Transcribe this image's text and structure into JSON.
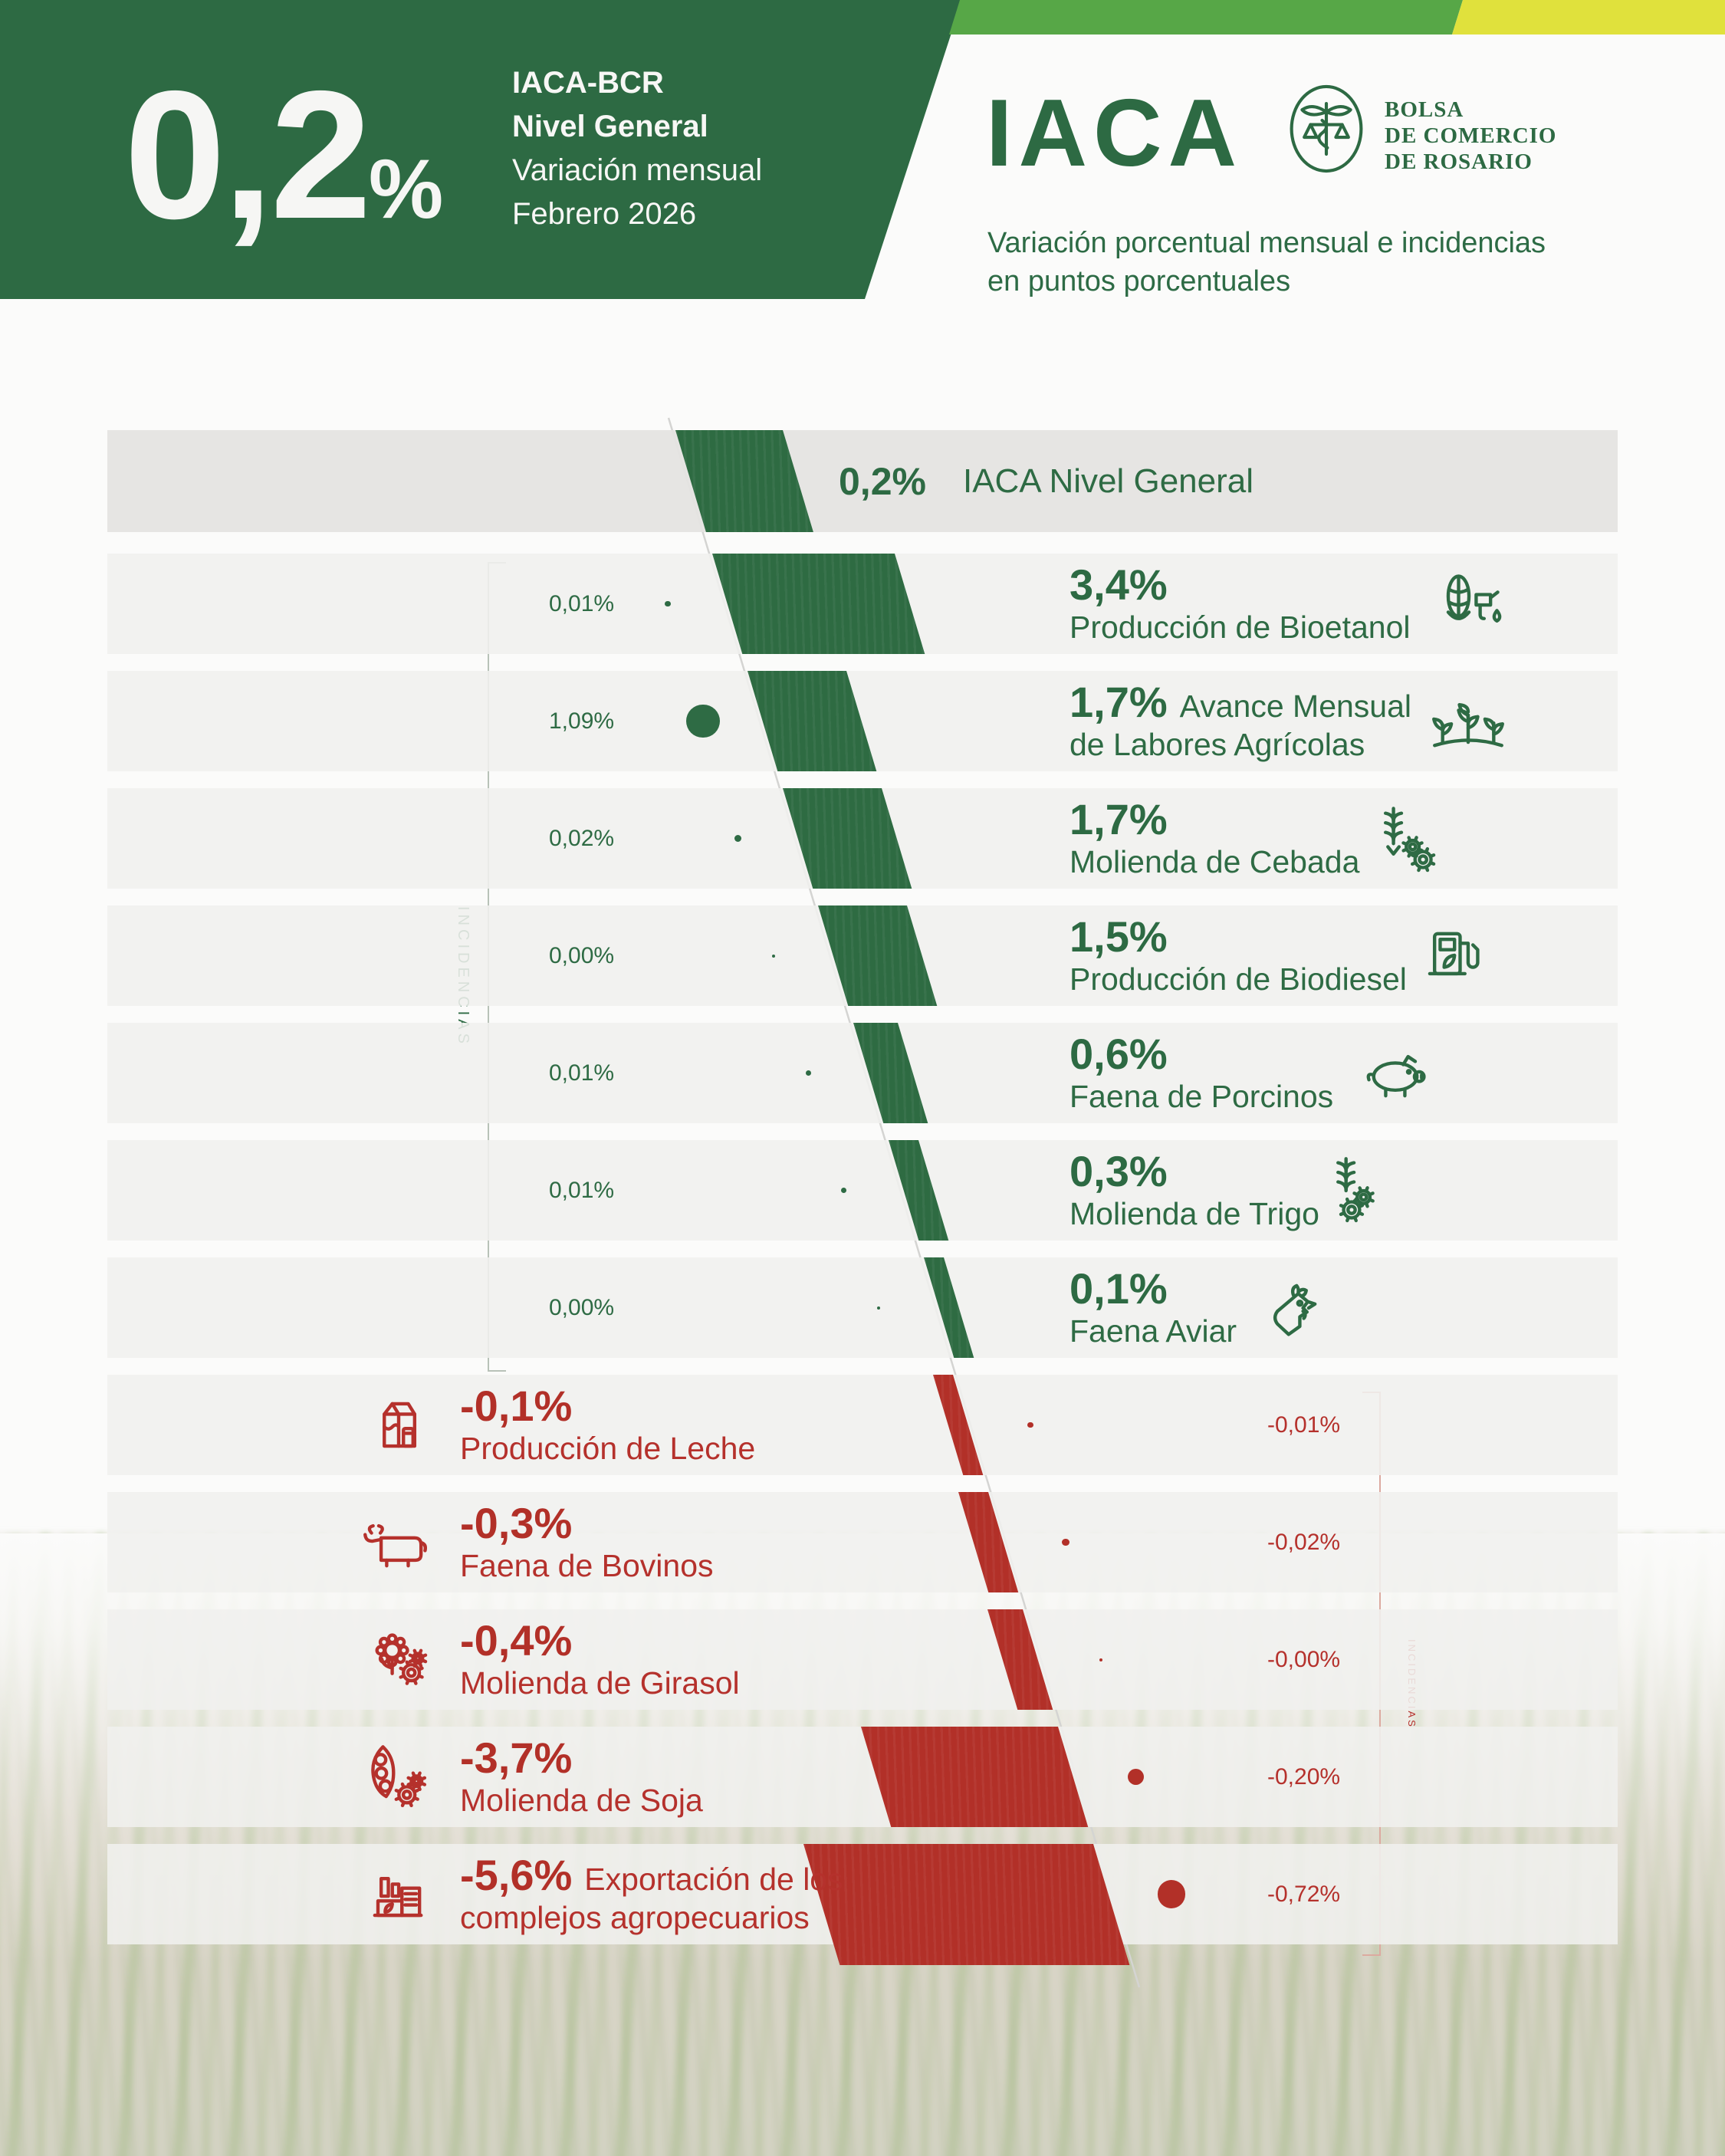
{
  "header": {
    "big_value": "0,2%",
    "index_name": "IACA-BCR",
    "index_level": "Nivel General",
    "metric": "Variación mensual",
    "period": "Febrero 2026",
    "brand": "IACA",
    "org": [
      "BOLSA",
      "DE COMERCIO",
      "DE ROSARIO"
    ],
    "subtitle": [
      "Variación porcentual mensual e incidencias",
      "en puntos porcentuales"
    ]
  },
  "labels": {
    "incidences_positive": "INCIDENCIAS",
    "incidences_negative": "INCIDENCIAS"
  },
  "colors": {
    "dark_green": "#2d6a43",
    "bar_green": "#2e6b42",
    "band_green": "#57a747",
    "band_yellow": "#e0e13c",
    "red": "#b23028",
    "red_text": "#b5312c",
    "row_bg": "#f0f0ee",
    "header_row_bg": "#e5e4e2"
  },
  "chart_data": {
    "type": "bar",
    "subtype": "diverging-diagonal-funnel",
    "unit": "%",
    "title": "IACA — Variación porcentual mensual e incidencias en puntos porcentuales",
    "period": "Febrero 2026",
    "legend_position": "none",
    "grid": false,
    "total": {
      "name": "IACA Nivel General",
      "value": 0.2,
      "value_label": "0,2%"
    },
    "rows": [
      {
        "name": "Producción de Bioetanol",
        "name_lines": [
          "Producción de Bioetanol"
        ],
        "inline": false,
        "value": 3.4,
        "value_label": "3,4%",
        "incidence": 0.01,
        "incidence_label": "0,01%",
        "icon": "corn-fuel-icon"
      },
      {
        "name": "Avance Mensual de Labores Agrícolas",
        "name_lines": [
          "Avance Mensual",
          "de Labores Agrícolas"
        ],
        "inline": true,
        "value": 1.7,
        "value_label": "1,7%",
        "incidence": 1.09,
        "incidence_label": "1,09%",
        "icon": "crops-icon"
      },
      {
        "name": "Molienda de Cebada",
        "name_lines": [
          "Molienda de Cebada"
        ],
        "inline": false,
        "value": 1.7,
        "value_label": "1,7%",
        "incidence": 0.02,
        "incidence_label": "0,02%",
        "icon": "wheat-arrow-gear-icon"
      },
      {
        "name": "Producción de Biodiesel",
        "name_lines": [
          "Producción de Biodiesel"
        ],
        "inline": false,
        "value": 1.5,
        "value_label": "1,5%",
        "incidence": 0.0,
        "incidence_label": "0,00%",
        "icon": "biodiesel-pump-icon"
      },
      {
        "name": "Faena de Porcinos",
        "name_lines": [
          "Faena de Porcinos"
        ],
        "inline": false,
        "value": 0.6,
        "value_label": "0,6%",
        "incidence": 0.01,
        "incidence_label": "0,01%",
        "icon": "pig-icon"
      },
      {
        "name": "Molienda de Trigo",
        "name_lines": [
          "Molienda de Trigo"
        ],
        "inline": false,
        "value": 0.3,
        "value_label": "0,3%",
        "incidence": 0.01,
        "incidence_label": "0,01%",
        "icon": "wheat-gears-icon"
      },
      {
        "name": "Faena Aviar",
        "name_lines": [
          "Faena Aviar"
        ],
        "inline": false,
        "value": 0.1,
        "value_label": "0,1%",
        "incidence": 0.0,
        "incidence_label": "0,00%",
        "icon": "rooster-icon"
      },
      {
        "name": "Producción de Leche",
        "name_lines": [
          "Producción de Leche"
        ],
        "inline": false,
        "value": -0.1,
        "value_label": "-0,1%",
        "incidence": -0.01,
        "incidence_label": "-0,01%",
        "icon": "milk-icon"
      },
      {
        "name": "Faena de Bovinos",
        "name_lines": [
          "Faena de Bovinos"
        ],
        "inline": false,
        "value": -0.3,
        "value_label": "-0,3%",
        "incidence": -0.02,
        "incidence_label": "-0,02%",
        "icon": "cow-icon"
      },
      {
        "name": "Molienda de Girasol",
        "name_lines": [
          "Molienda de Girasol"
        ],
        "inline": false,
        "value": -0.4,
        "value_label": "-0,4%",
        "incidence": -0.0,
        "incidence_label": "-0,00%",
        "icon": "sunflower-gear-icon"
      },
      {
        "name": "Molienda de Soja",
        "name_lines": [
          "Molienda de Soja"
        ],
        "inline": false,
        "value": -3.7,
        "value_label": "-3,7%",
        "incidence": -0.2,
        "incidence_label": "-0,20%",
        "icon": "soy-gears-icon"
      },
      {
        "name": "Exportación de los complejos agropecuarios",
        "name_lines": [
          "Exportación de los",
          "complejos agropecuarios"
        ],
        "inline": true,
        "value": -5.6,
        "value_label": "-5,6%",
        "incidence": -0.72,
        "incidence_label": "-0,72%",
        "icon": "factory-icon"
      }
    ]
  }
}
